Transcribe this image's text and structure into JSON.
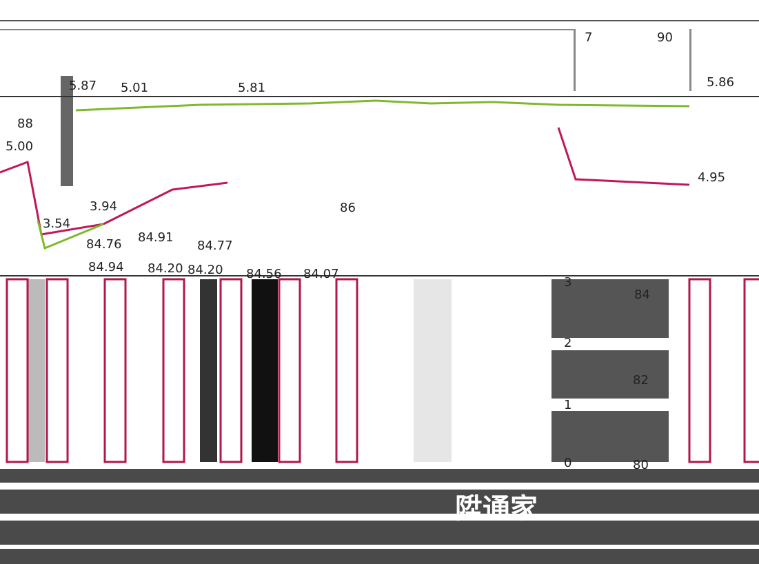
{
  "labels": [
    "5.87",
    "5.01",
    "5.81",
    "5.86",
    "88",
    "5.00",
    "3.94",
    "3.54",
    "84.76",
    "84.91",
    "84.77",
    "86",
    "84.94",
    "84.20",
    "84.20",
    "84.56",
    "84.07",
    "7",
    "90",
    "4.95",
    "3",
    "84",
    "2",
    "82",
    "1",
    "0",
    "80"
  ],
  "footer": {
    "brand": "陞通家"
  }
}
